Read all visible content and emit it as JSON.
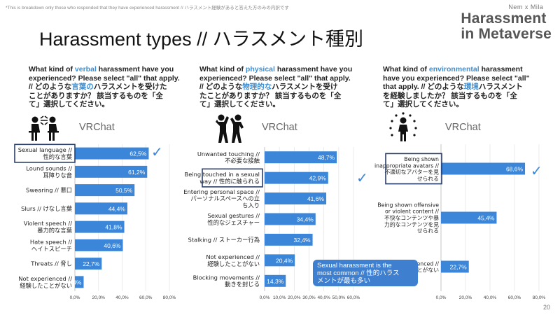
{
  "note": "*This is breakdown only those who responded that they have experienced harassment // ハラスメント経験があると答えた方のみの内訳です",
  "brand": {
    "sub": "Nem x Mila",
    "line1": "Harassment",
    "line2": "in Metaverse"
  },
  "title": "Harassment types // ハラスメント種別",
  "page_number": "20",
  "callout": {
    "line1": "Sexual harassment is the",
    "line2": "most common // 性的ハラス",
    "line3": "メントが最も多い"
  },
  "questions": [
    {
      "pre": "What kind of ",
      "hl": "verbal",
      "post": " harassment have you",
      "l2": "experienced? Please select \"all\" that apply.",
      "l3a": "// どのような",
      "l3hl": "言葉の",
      "l3b": "ハラスメントを受けた",
      "l4": "ことがありますか？ 該当するものを「全",
      "l5": "て」選択してください。"
    },
    {
      "pre": "What kind of ",
      "hl": "physical",
      "post": " harassment have you",
      "l2": "experienced? Please select \"all\" that apply.",
      "l3a": "// どのような",
      "l3hl": "物理的な",
      "l3b": "ハラスメントを受け",
      "l4": "たことがありますか？ 該当するものを「全",
      "l5": "て」選択してください。"
    },
    {
      "pre": "What kind of ",
      "hl": "environmental",
      "post": " harassment",
      "l2": "have you experienced? Please select \"all\"",
      "l3a": "that apply. // どのような",
      "l3hl": "環境",
      "l3b": "ハラスメント",
      "l4": "を経験しましたか？ 該当するものを「全",
      "l5": "て」選択してください。"
    }
  ],
  "chart_data": [
    {
      "type": "bar",
      "orientation": "horizontal",
      "title": "VRChat",
      "categories": [
        [
          "Sexual language //",
          "性的な言葉"
        ],
        [
          "Lound sounds //",
          "耳障りな音"
        ],
        [
          "Swearing // 悪口"
        ],
        [
          "Slurs // けなし言葉"
        ],
        [
          "Violent speech //",
          "暴力的な言葉"
        ],
        [
          "Hate speech //",
          "ヘイトスピーチ"
        ],
        [
          "Threats // 脅し"
        ],
        [
          "Not experienced //",
          "経験したことがない"
        ]
      ],
      "values": [
        62.5,
        61.2,
        50.5,
        44.4,
        41.8,
        40.6,
        22.7,
        7.4
      ],
      "value_labels": [
        "62,5%",
        "61,2%",
        "50,5%",
        "44,4%",
        "41,8%",
        "40,6%",
        "22,7%",
        "7,4%"
      ],
      "highlight_index": 0,
      "xlim": [
        0,
        80
      ],
      "xticks": [
        "0,0%",
        "20,0%",
        "40,0%",
        "60,0%",
        "80,0%"
      ],
      "color": "#3b86d8"
    },
    {
      "type": "bar",
      "orientation": "horizontal",
      "title": "VRChat",
      "categories": [
        [
          "Unwanted touching //",
          "不必要な接触"
        ],
        [
          "Being touched in a sexual",
          "way // 性的に触られる"
        ],
        [
          "Entering personal space //",
          "パーソナルスペースへの立",
          "ち入り"
        ],
        [
          "Sexual gestures //",
          "性的なジェスチャー"
        ],
        [
          "Stalking // ストーカー行為"
        ],
        [
          "Not experienced //",
          "経験したことがない"
        ],
        [
          "Blocking movements //",
          "動きを封じる"
        ]
      ],
      "values": [
        48.7,
        42.9,
        41.6,
        34.4,
        32.4,
        20.4,
        14.3
      ],
      "value_labels": [
        "48,7%",
        "42,9%",
        "41,6%",
        "34,4%",
        "32,4%",
        "20,4%",
        "14,3%"
      ],
      "highlight_index": 1,
      "xlim": [
        0,
        60
      ],
      "xticks": [
        "0,0%",
        "10,0%",
        "20,0%",
        "30,0%",
        "40,0%",
        "50,0%",
        "60,0%"
      ],
      "color": "#3b86d8"
    },
    {
      "type": "bar",
      "orientation": "horizontal",
      "title": "VRChat",
      "categories": [
        [
          "Being shown",
          "inappropriate avatars //",
          "不適切なアバターを見",
          "せられる"
        ],
        [
          "Being shown offensive",
          "or violent content //",
          "不快なコンテンツや暴",
          "力的なコンテンツを見",
          "せられる"
        ],
        [
          "Not experienced //",
          "経験したことがない"
        ]
      ],
      "values": [
        68.6,
        45.4,
        22.7
      ],
      "value_labels": [
        "68,6%",
        "45,4%",
        "22,7%"
      ],
      "highlight_index": 0,
      "xlim": [
        0,
        80
      ],
      "xticks": [
        "0,0%",
        "20,0%",
        "40,0%",
        "60,0%",
        "80,0%"
      ],
      "color": "#3b86d8"
    }
  ]
}
